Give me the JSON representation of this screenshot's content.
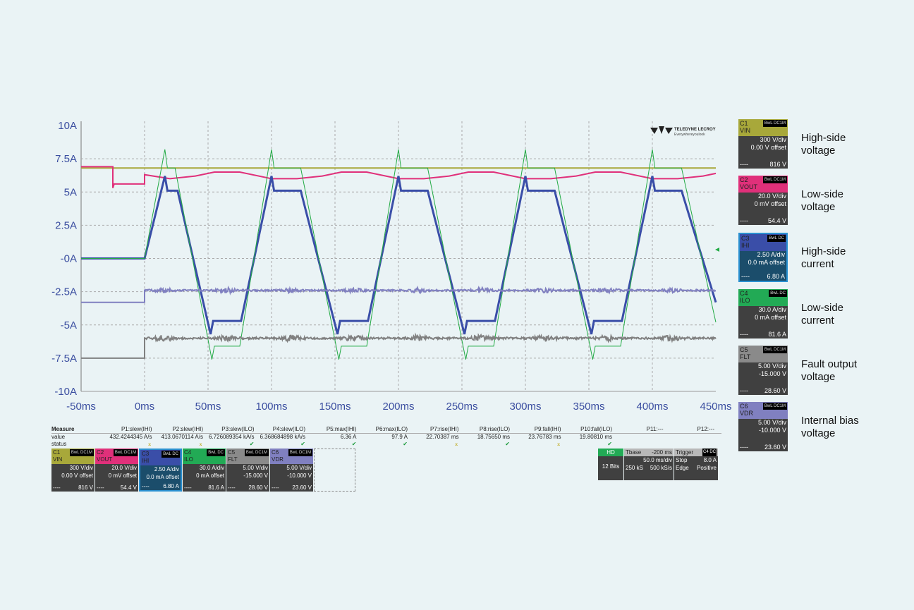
{
  "chart_data": {
    "type": "line",
    "title": "",
    "xlabel": "",
    "ylabel": "",
    "x_tick_labels": [
      "-50ms",
      "0ms",
      "50ms",
      "100ms",
      "150ms",
      "200ms",
      "250ms",
      "300ms",
      "350ms",
      "400ms",
      "450ms"
    ],
    "y_tick_labels": [
      "10A",
      "7.5A",
      "5A",
      "2.5A",
      "-0A",
      "-2.5A",
      "-5A",
      "-7.5A",
      "-10A"
    ],
    "xlim": [
      -50,
      450
    ],
    "ylim": [
      -10,
      10
    ],
    "grid": true,
    "series": [
      {
        "name": "C1 VIN",
        "color": "#a8a83a",
        "points": [
          [
            -50,
            6.8
          ],
          [
            450,
            6.8
          ]
        ]
      },
      {
        "name": "C2 VOUT",
        "color": "#e0307a",
        "points": [
          [
            -50,
            6.9
          ],
          [
            -25,
            6.9
          ],
          [
            -25,
            5.3
          ],
          [
            -24,
            5.6
          ],
          [
            0,
            5.6
          ],
          [
            0,
            6.3
          ],
          [
            20,
            6.0
          ],
          [
            40,
            6.2
          ],
          [
            55,
            6.5
          ],
          [
            75,
            6.5
          ],
          [
            100,
            6.0
          ],
          [
            120,
            6.0
          ],
          [
            140,
            6.2
          ],
          [
            155,
            6.5
          ],
          [
            175,
            6.5
          ],
          [
            200,
            6.0
          ],
          [
            220,
            6.0
          ],
          [
            240,
            6.2
          ],
          [
            255,
            6.5
          ],
          [
            275,
            6.5
          ],
          [
            300,
            6.0
          ],
          [
            320,
            6.0
          ],
          [
            340,
            6.2
          ],
          [
            355,
            6.5
          ],
          [
            375,
            6.5
          ],
          [
            400,
            6.0
          ],
          [
            420,
            6.0
          ],
          [
            440,
            6.2
          ],
          [
            450,
            6.4
          ]
        ]
      },
      {
        "name": "C3 IHI",
        "color": "#3a4ea8",
        "points": [
          [
            -50,
            0
          ],
          [
            0,
            0
          ],
          [
            16,
            6.2
          ],
          [
            18,
            5.1
          ],
          [
            26,
            5.1
          ],
          [
            52,
            -5.7
          ],
          [
            54,
            -4.7
          ],
          [
            76,
            -4.7
          ],
          [
            100,
            6.2
          ],
          [
            102,
            5.1
          ],
          [
            123,
            5.1
          ],
          [
            152,
            -5.7
          ],
          [
            154,
            -4.7
          ],
          [
            176,
            -4.7
          ],
          [
            200,
            6.2
          ],
          [
            202,
            5.1
          ],
          [
            223,
            5.1
          ],
          [
            252,
            -5.7
          ],
          [
            254,
            -4.7
          ],
          [
            276,
            -4.7
          ],
          [
            300,
            6.2
          ],
          [
            302,
            5.1
          ],
          [
            323,
            5.1
          ],
          [
            352,
            -5.7
          ],
          [
            354,
            -4.7
          ],
          [
            376,
            -4.7
          ],
          [
            400,
            6.2
          ],
          [
            402,
            5.1
          ],
          [
            423,
            5.1
          ],
          [
            450,
            -3.3
          ]
        ]
      },
      {
        "name": "C4 ILO",
        "color": "#22aa44",
        "points": [
          [
            -50,
            0
          ],
          [
            0,
            0
          ],
          [
            16,
            8.2
          ],
          [
            18,
            6.8
          ],
          [
            24,
            6.8
          ],
          [
            53,
            -7.6
          ],
          [
            55,
            -6.6
          ],
          [
            75,
            -6.6
          ],
          [
            100,
            8.2
          ],
          [
            102,
            6.8
          ],
          [
            123,
            6.8
          ],
          [
            153,
            -7.6
          ],
          [
            155,
            -6.6
          ],
          [
            175,
            -6.6
          ],
          [
            200,
            8.2
          ],
          [
            202,
            6.8
          ],
          [
            223,
            6.8
          ],
          [
            253,
            -7.6
          ],
          [
            255,
            -6.6
          ],
          [
            275,
            -6.6
          ],
          [
            300,
            8.2
          ],
          [
            302,
            6.8
          ],
          [
            323,
            6.8
          ],
          [
            353,
            -7.6
          ],
          [
            355,
            -6.6
          ],
          [
            375,
            -6.6
          ],
          [
            400,
            8.2
          ],
          [
            402,
            6.8
          ],
          [
            423,
            6.8
          ],
          [
            450,
            -4.8
          ]
        ]
      },
      {
        "name": "C5 FLT",
        "color": "#808080",
        "points": [
          [
            -50,
            -7.5
          ],
          [
            0,
            -7.5
          ],
          [
            0,
            -6.0
          ],
          [
            450,
            -6.0
          ]
        ]
      },
      {
        "name": "C6 VDR",
        "color": "#8080c0",
        "points": [
          [
            -50,
            -3.3
          ],
          [
            0,
            -3.3
          ],
          [
            0,
            -2.4
          ],
          [
            450,
            -2.4
          ]
        ]
      }
    ]
  },
  "logo": {
    "brand": "TELEDYNE LECROY",
    "tagline": "Everywhereyoulook"
  },
  "measure": {
    "headers": [
      "Measure",
      "P1:slew(IHI)",
      "P2:slew(IHI)",
      "P3:slew(ILO)",
      "P4:slew(ILO)",
      "P5:max(IHI)",
      "P6:max(ILO)",
      "P7:rise(IHI)",
      "P8:rise(ILO)",
      "P9:fall(IHI)",
      "P10:fall(ILO)",
      "P11:---",
      "P12:---"
    ],
    "values": [
      "value",
      "432.4244345 A/s",
      "413.0670114 A/s",
      "6.726089354 kA/s",
      "6.368684898 kA/s",
      "6.36 A",
      "97.9 A",
      "22.70387 ms",
      "18.75650 ms",
      "23.76783 ms",
      "19.80810 ms",
      "",
      ""
    ],
    "status": [
      "status",
      "⌅",
      "⌅",
      "✔",
      "✔",
      "✔",
      "✔",
      "⌅",
      "✔",
      "⌅",
      "✔",
      "",
      ""
    ]
  },
  "channels": [
    {
      "id": "C1",
      "name": "VIN",
      "tags": "BwL DC1M",
      "scale": "300 V/div",
      "offset": "0.00 V offset",
      "value": "816 V",
      "color": "#a8a83a",
      "body": "#404040",
      "desc": "High-side voltage"
    },
    {
      "id": "C2",
      "name": "VOUT",
      "tags": "BwL DC1M",
      "scale": "20.0 V/div",
      "offset": "0 mV offset",
      "value": "54.4 V",
      "color": "#e0307a",
      "body": "#404040",
      "desc": "Low-side voltage"
    },
    {
      "id": "C3",
      "name": "IHI",
      "tags": "BwL DC",
      "scale": "2.50 A/div",
      "offset": "0.0 mA offset",
      "value": "6.80 A",
      "color": "#3a4ea8",
      "body": "#1b4d6b",
      "desc": "High-side current"
    },
    {
      "id": "C4",
      "name": "ILO",
      "tags": "BwL DC",
      "scale": "30.0 A/div",
      "offset": "0 mA offset",
      "value": "81.6 A",
      "color": "#22aa55",
      "body": "#404040",
      "desc": "Low-side current"
    },
    {
      "id": "C5",
      "name": "FLT",
      "tags": "BwL DC1M",
      "scale": "5.00 V/div",
      "offset": "-15.000 V",
      "value": "28.60 V",
      "color": "#8a8a8a",
      "body": "#404040",
      "desc": "Fault output voltage"
    },
    {
      "id": "C6",
      "name": "VDR",
      "tags": "BwL DC1M",
      "scale": "5.00 V/div",
      "offset": "-10.000 V",
      "value": "23.60 V",
      "color": "#8080c0",
      "body": "#404040",
      "desc": "Internal bias voltage"
    }
  ],
  "channel_dash": "----",
  "hd": {
    "label": "HD",
    "bits": "12 Bits"
  },
  "timebase": {
    "label": "Tbase",
    "delay": "-200 ms",
    "scale": "50.0 ms/div",
    "samples": "250 kS",
    "rate": "500 kS/s"
  },
  "trigger": {
    "label": "Trigger",
    "tags": "C4 DC",
    "mode": "Stop",
    "level": "8.0 A",
    "type": "Edge",
    "slope": "Positive"
  }
}
